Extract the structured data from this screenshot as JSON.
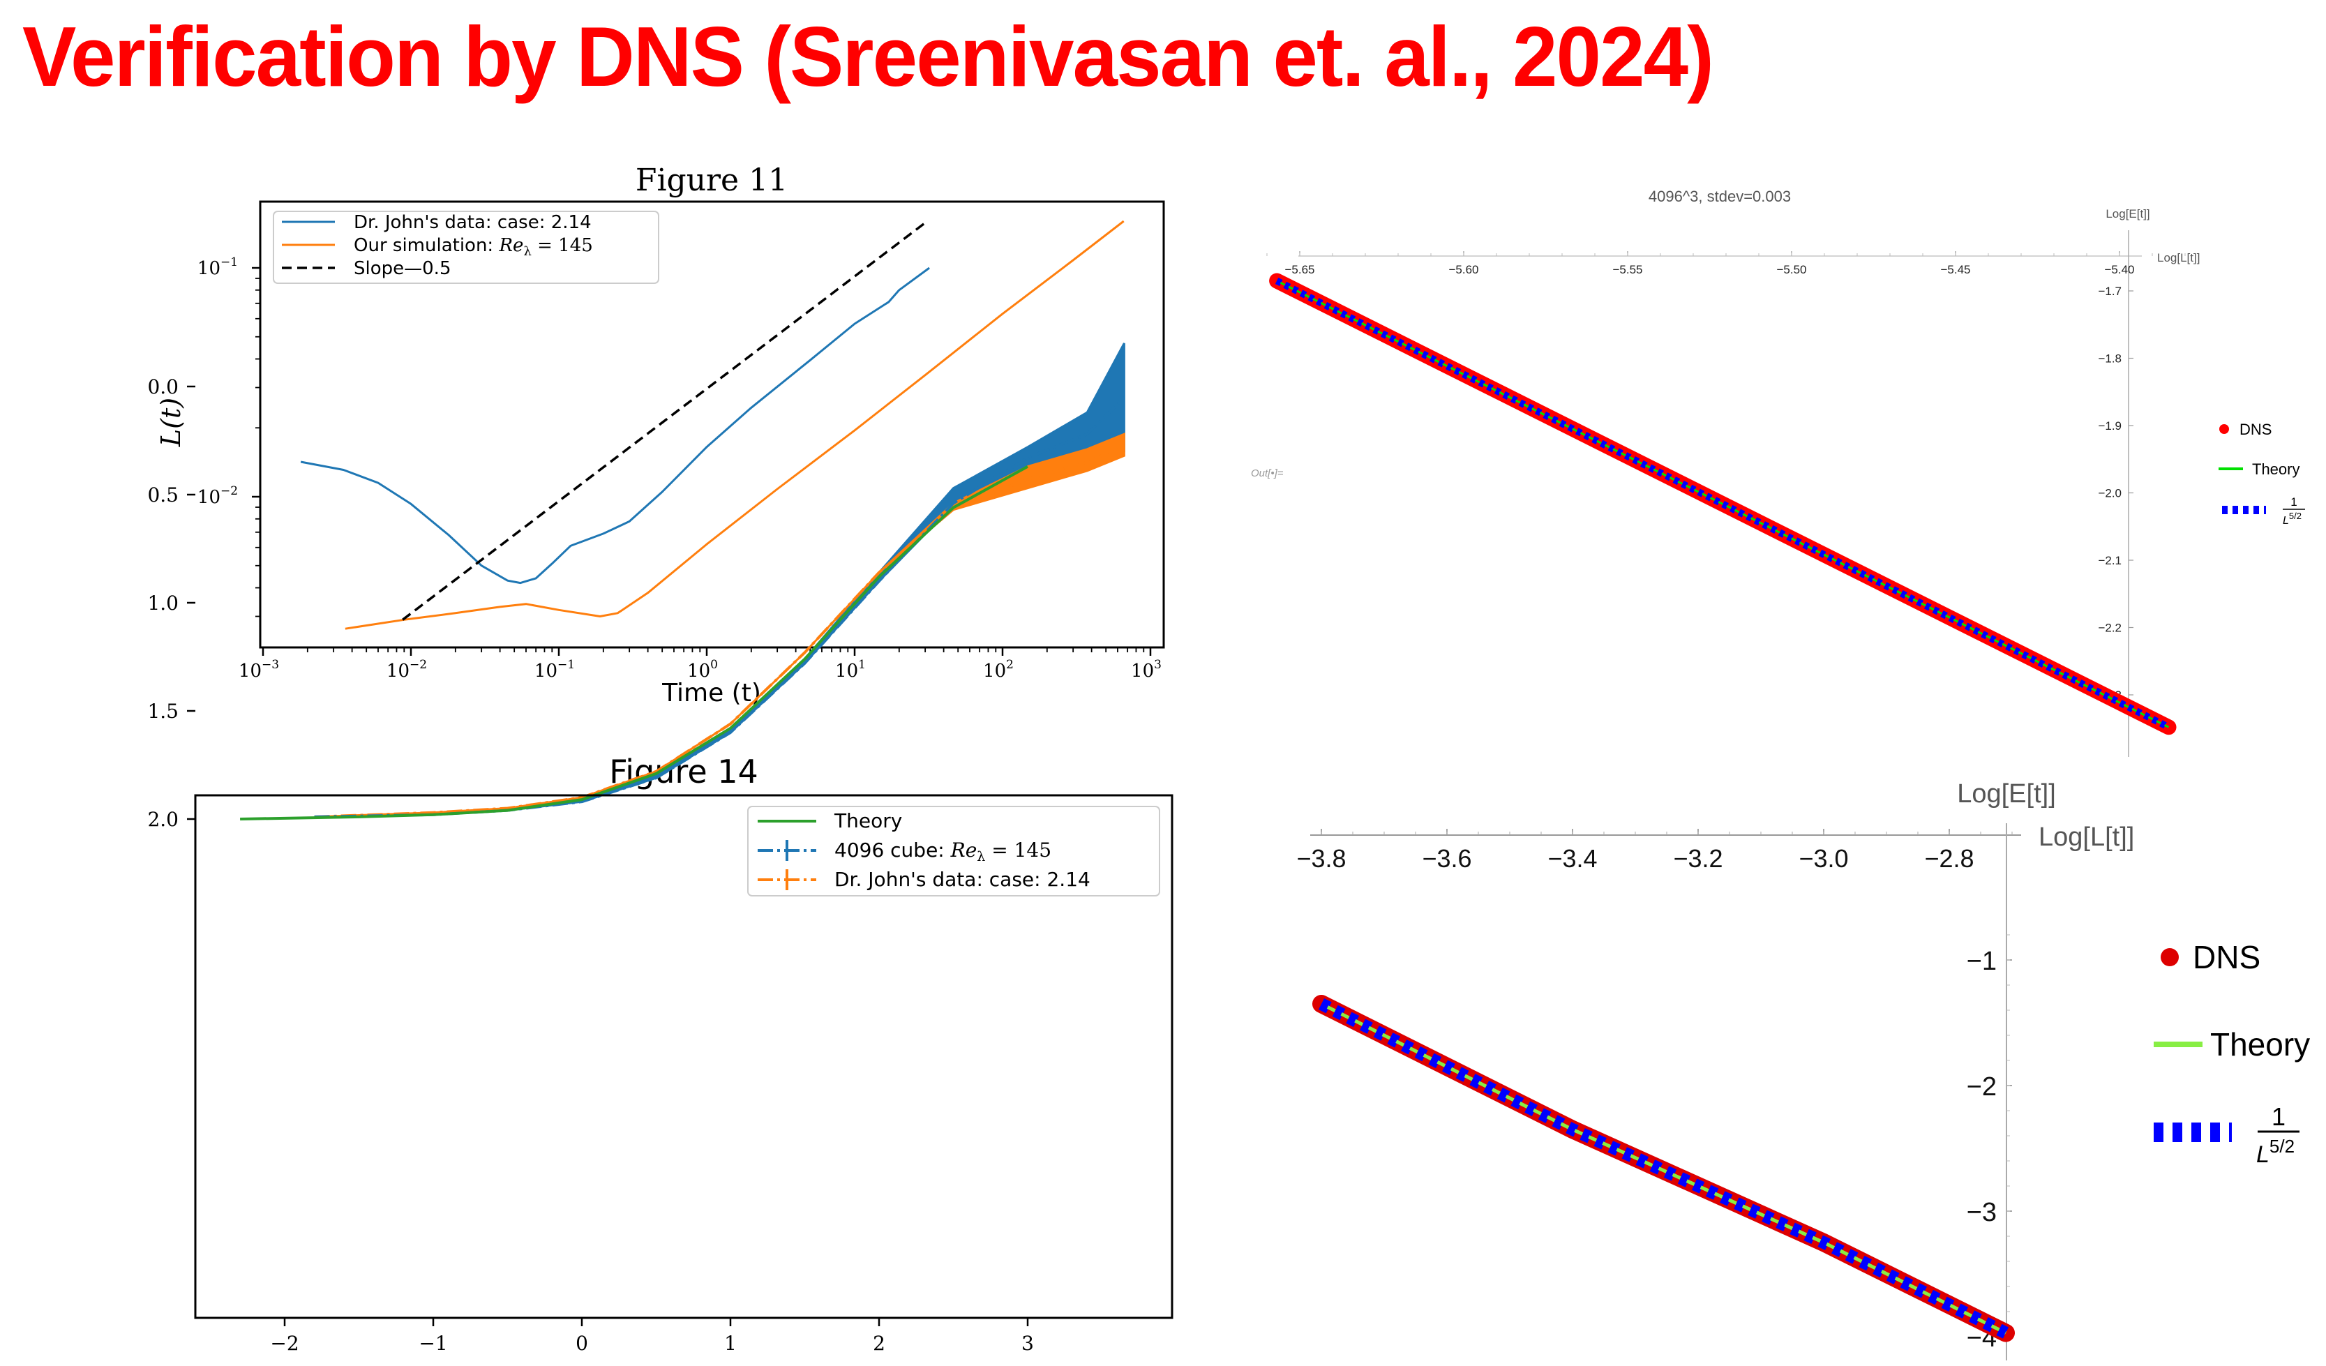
{
  "slide": {
    "title": "Verification by DNS (Sreenivasan et. al., 2024)",
    "title_color": "#ff0000"
  },
  "out_label": "Out[•]=",
  "chart_data": [
    {
      "id": "figure11",
      "type": "line",
      "title": "Figure 11",
      "xlabel": "Time (t)",
      "ylabel": "L(t)",
      "xscale": "log",
      "yscale": "log",
      "xlim": [
        0.00095,
        1200
      ],
      "ylim": [
        0.0022,
        0.143
      ],
      "xticks": [
        "10^-3",
        "10^-2",
        "10^-1",
        "10^0",
        "10^1",
        "10^2",
        "10^3"
      ],
      "xtick_values": [
        0.001,
        0.01,
        0.1,
        1,
        10,
        100,
        1000
      ],
      "yticks": [
        "10^-1",
        "10^-2"
      ],
      "ytick_values": [
        0.1,
        0.01
      ],
      "legend_position": "upper left",
      "grid": false,
      "series": [
        {
          "name": "Dr. John's data: case: 2.14",
          "color": "#1f77b4",
          "style": "solid",
          "x": [
            0.0018,
            0.0035,
            0.006,
            0.01,
            0.018,
            0.03,
            0.045,
            0.055,
            0.07,
            0.09,
            0.12,
            0.2,
            0.3,
            0.5,
            1,
            2,
            5,
            10,
            17,
            20,
            32
          ],
          "y": [
            0.0142,
            0.0131,
            0.0115,
            0.0093,
            0.0068,
            0.005,
            0.0043,
            0.0042,
            0.0044,
            0.0051,
            0.0061,
            0.0069,
            0.0078,
            0.0105,
            0.0165,
            0.0245,
            0.0395,
            0.057,
            0.071,
            0.08,
            0.1
          ]
        },
        {
          "name": "Our simulation: Re_λ = 145",
          "color": "#ff7f0e",
          "style": "solid",
          "x": [
            0.0036,
            0.009,
            0.02,
            0.04,
            0.06,
            0.1,
            0.19,
            0.25,
            0.4,
            1,
            3,
            10,
            30,
            100,
            300,
            660
          ],
          "y": [
            0.00265,
            0.0029,
            0.0031,
            0.0033,
            0.0034,
            0.0032,
            0.003,
            0.0031,
            0.0038,
            0.0062,
            0.0108,
            0.0195,
            0.034,
            0.063,
            0.108,
            0.16
          ]
        },
        {
          "name": "Slope—0.5",
          "color": "#000000",
          "style": "dashed",
          "x": [
            0.0088,
            31
          ],
          "y": [
            0.0029,
            0.16
          ]
        }
      ]
    },
    {
      "id": "figure14",
      "type": "line",
      "title": "Figure 14",
      "xlabel": "",
      "ylabel": "",
      "xlim": [
        -2.62,
        3.97
      ],
      "ylim": [
        -0.28,
        2.11
      ],
      "xticks": [
        "−2",
        "−1",
        "0",
        "1",
        "2",
        "3"
      ],
      "xtick_values": [
        -2,
        -1,
        0,
        1,
        2,
        3
      ],
      "yticks": [
        "2.0",
        "1.5",
        "1.0",
        "0.5",
        "0.0"
      ],
      "ytick_values": [
        2.0,
        1.5,
        1.0,
        0.5,
        0.0
      ],
      "legend_position": "upper right",
      "grid": false,
      "series": [
        {
          "name": "Theory",
          "color": "#2ca02c",
          "style": "solid",
          "x": [
            -2.3,
            -1.5,
            -1.0,
            -0.5,
            0.0,
            0.5,
            1.0,
            1.5,
            2.0,
            2.5,
            3.0
          ],
          "y": [
            2.0,
            1.99,
            1.98,
            1.96,
            1.91,
            1.79,
            1.58,
            1.26,
            0.88,
            0.56,
            0.37
          ]
        },
        {
          "name": "4096 cube: Re_λ = 145",
          "color": "#1f77b4",
          "style": "dashdot-errorbar",
          "x": [
            -1.8,
            -1.0,
            -0.5,
            0.0,
            0.5,
            1.0,
            1.5,
            2.0,
            2.5,
            3.0,
            3.4,
            3.65
          ],
          "y": [
            1.99,
            1.98,
            1.96,
            1.92,
            1.81,
            1.6,
            1.28,
            0.9,
            0.54,
            0.33,
            0.22,
            0.05
          ],
          "band_low": [
            1.99,
            1.98,
            1.96,
            1.92,
            1.8,
            1.58,
            1.26,
            0.86,
            0.47,
            0.28,
            0.12,
            -0.2
          ],
          "band_high": [
            1.99,
            1.98,
            1.96,
            1.92,
            1.81,
            1.6,
            1.28,
            0.9,
            0.55,
            0.38,
            0.33,
            0.3
          ]
        },
        {
          "name": "Dr. John's data: case: 2.14",
          "color": "#ff7f0e",
          "style": "dashdot-errorbar",
          "x": [
            -1.8,
            -1.0,
            -0.5,
            0.0,
            0.5,
            1.0,
            1.5,
            2.0,
            2.5,
            3.0,
            3.4,
            3.65
          ],
          "y": [
            1.99,
            1.97,
            1.95,
            1.9,
            1.78,
            1.56,
            1.23,
            0.86,
            0.56,
            0.43,
            0.35,
            0.27
          ],
          "band_low": [
            1.99,
            1.97,
            1.95,
            1.9,
            1.78,
            1.56,
            1.23,
            0.86,
            0.54,
            0.37,
            0.29,
            0.22
          ],
          "band_high": [
            1.99,
            1.97,
            1.95,
            1.9,
            1.78,
            1.56,
            1.23,
            0.86,
            0.57,
            0.47,
            0.39,
            0.32
          ]
        }
      ]
    },
    {
      "id": "mathematica-top",
      "type": "scatter",
      "title": "4096^3, stdev=0.003",
      "xlabel": "Log[L[t]]",
      "ylabel": "Log[E[t]]",
      "xlim": [
        -5.662,
        -5.38
      ],
      "ylim": [
        -2.365,
        -1.65
      ],
      "xticks": [
        "−5.65",
        "−5.60",
        "−5.55",
        "−5.50",
        "−5.45",
        "−5.40"
      ],
      "xtick_values": [
        -5.65,
        -5.6,
        -5.55,
        -5.5,
        -5.45,
        -5.4
      ],
      "yticks": [
        "−1.7",
        "−1.8",
        "−1.9",
        "−2.0",
        "−2.1",
        "−2.2",
        "−2.3"
      ],
      "ytick_values": [
        -1.7,
        -1.8,
        -1.9,
        -2.0,
        -2.1,
        -2.2,
        -2.3
      ],
      "legend_position": "right",
      "axes_origin": "top-right",
      "series": [
        {
          "name": "DNS",
          "color": "#ff0000",
          "style": "markers",
          "x": [
            -5.657,
            -5.385
          ],
          "y": [
            -1.685,
            -2.348
          ]
        },
        {
          "name": "Theory",
          "color": "#00dd00",
          "style": "solid",
          "x": [
            -5.657,
            -5.385
          ],
          "y": [
            -1.685,
            -2.348
          ]
        },
        {
          "name": "1/L^(5/2)",
          "color": "#0000ff",
          "style": "thick-dashed",
          "x": [
            -5.657,
            -5.385
          ],
          "y": [
            -1.685,
            -2.348
          ]
        }
      ]
    },
    {
      "id": "mathematica-bottom",
      "type": "scatter",
      "title": "",
      "xlabel": "Log[L[t]]",
      "ylabel": "Log[E[t]]",
      "xlim": [
        -3.82,
        -2.7
      ],
      "ylim": [
        -4.05,
        -0.8
      ],
      "xticks": [
        "−3.8",
        "−3.6",
        "−3.4",
        "−3.2",
        "−3.0",
        "−2.8"
      ],
      "xtick_values": [
        -3.8,
        -3.6,
        -3.4,
        -3.2,
        -3.0,
        -2.8
      ],
      "yticks": [
        "−1",
        "−2",
        "−3",
        "−4"
      ],
      "ytick_values": [
        -1,
        -2,
        -3,
        -4
      ],
      "legend_position": "right",
      "axes_origin": "top-right",
      "series": [
        {
          "name": "DNS",
          "color": "#dd0000",
          "style": "markers",
          "x": [
            -3.8,
            -3.4,
            -3.0,
            -2.71
          ],
          "y": [
            -1.35,
            -2.35,
            -3.25,
            -3.97
          ]
        },
        {
          "name": "Theory",
          "color": "#88ee44",
          "style": "solid",
          "x": [
            -3.8,
            -2.71
          ],
          "y": [
            -1.35,
            -3.97
          ]
        },
        {
          "name": "1/L^(5/2)",
          "color": "#0000ff",
          "style": "thick-dashed",
          "x": [
            -3.8,
            -2.71
          ],
          "y": [
            -1.3,
            -3.97
          ]
        }
      ]
    }
  ],
  "fig11": {
    "title": "Figure 11",
    "xlabel": "Time (t)",
    "ylabel": "L(t)",
    "xtick_labels": [
      {
        "base": "10",
        "exp": "−3"
      },
      {
        "base": "10",
        "exp": "−2"
      },
      {
        "base": "10",
        "exp": "−1"
      },
      {
        "base": "10",
        "exp": "0"
      },
      {
        "base": "10",
        "exp": "1"
      },
      {
        "base": "10",
        "exp": "2"
      },
      {
        "base": "10",
        "exp": "3"
      }
    ],
    "ytick_labels": [
      {
        "base": "10",
        "exp": "−1"
      },
      {
        "base": "10",
        "exp": "−2"
      }
    ],
    "legend": [
      {
        "text": "Dr. John's data:  case: 2.14"
      },
      {
        "text": "Our simulation: ",
        "math": "Re",
        "sub": "λ",
        "tail": " = 145"
      },
      {
        "text": "Slope—0.5"
      }
    ]
  },
  "fig14": {
    "title": "Figure 14",
    "xtick_labels": [
      "−2",
      "−1",
      "0",
      "1",
      "2",
      "3"
    ],
    "ytick_labels": [
      "2.0",
      "1.5",
      "1.0",
      "0.5",
      "0.0"
    ],
    "legend": [
      {
        "text": "Theory"
      },
      {
        "text": "4096 cube: ",
        "math": "Re",
        "sub": "λ",
        "tail": " = 145"
      },
      {
        "text": "Dr. John's data:  case: 2.14"
      }
    ]
  },
  "mma_top": {
    "title": "4096^3, stdev=0.003",
    "y_axis_label": "Log[E[t]]",
    "x_axis_label": "Log[L[t]]",
    "xtick_labels": [
      "−5.65",
      "−5.60",
      "−5.55",
      "−5.50",
      "−5.45",
      "−5.40"
    ],
    "ytick_labels": [
      "−1.7",
      "−1.8",
      "−1.9",
      "−2.0",
      "−2.1",
      "−2.2",
      "−2.3"
    ],
    "legend": [
      {
        "label": "DNS"
      },
      {
        "label": "Theory"
      },
      {
        "num": "1",
        "den_base": "L",
        "den_exp": "5/2"
      }
    ]
  },
  "mma_bottom": {
    "y_axis_label": "Log[E[t]]",
    "x_axis_label": "Log[L[t]]",
    "xtick_labels": [
      "−3.8",
      "−3.6",
      "−3.4",
      "−3.2",
      "−3.0",
      "−2.8"
    ],
    "ytick_labels": [
      "−1",
      "−2",
      "−3",
      "−4"
    ],
    "legend": [
      {
        "label": "DNS"
      },
      {
        "label": "Theory"
      },
      {
        "num": "1",
        "den_base": "L",
        "den_exp": "5/2"
      }
    ]
  }
}
